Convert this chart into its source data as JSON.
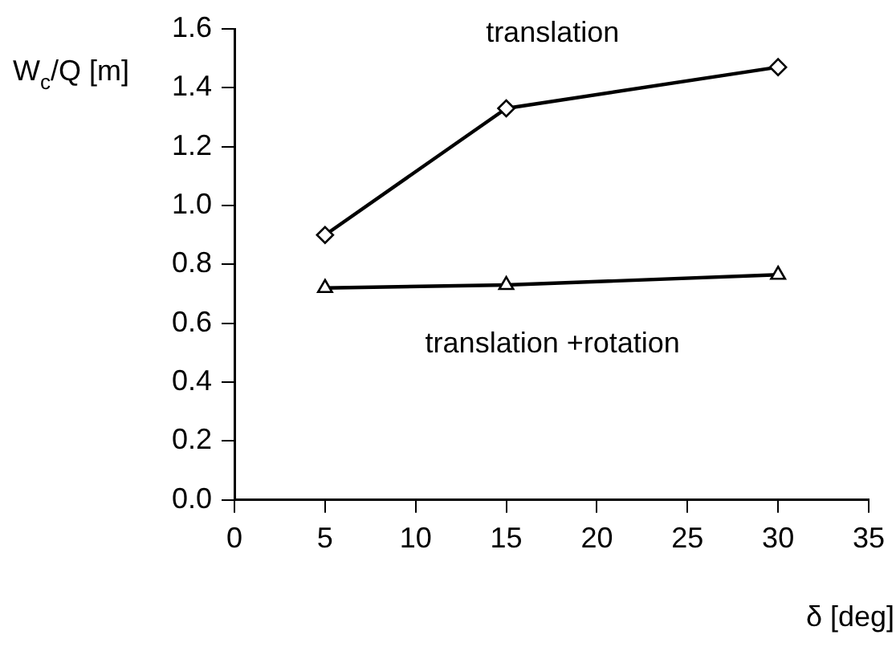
{
  "chart_data": {
    "type": "line",
    "xlabel": "δ [deg]",
    "ylabel": "W$_{c}$/Q [m]",
    "xlim": [
      0,
      35
    ],
    "xticks": [
      0,
      5,
      10,
      15,
      20,
      25,
      30,
      35
    ],
    "ylim": [
      0,
      1.6
    ],
    "yticks": [
      {
        "value": 0,
        "label": "0.0"
      },
      {
        "value": 0.2,
        "label": "0.2"
      },
      {
        "value": 0.4,
        "label": "0.4"
      },
      {
        "value": 0.6,
        "label": "0.6"
      },
      {
        "value": 0.8,
        "label": "0.8"
      },
      {
        "value": 1,
        "label": "1.0"
      },
      {
        "value": 1.2,
        "label": "1.2"
      },
      {
        "value": 1.4,
        "label": "1.4"
      },
      {
        "value": 1.6,
        "label": "1.6"
      }
    ],
    "x": [
      5,
      15,
      30
    ],
    "series": [
      {
        "name": "translation",
        "color": "#000000",
        "marker": "diamond",
        "values": [
          0.9,
          1.33,
          1.47
        ]
      },
      {
        "name": "translation +rotation",
        "color": "#000000",
        "marker": "triangle",
        "values": [
          0.72,
          0.73,
          0.765
        ]
      }
    ],
    "grid": false,
    "legend": false,
    "line_style": "solid"
  }
}
